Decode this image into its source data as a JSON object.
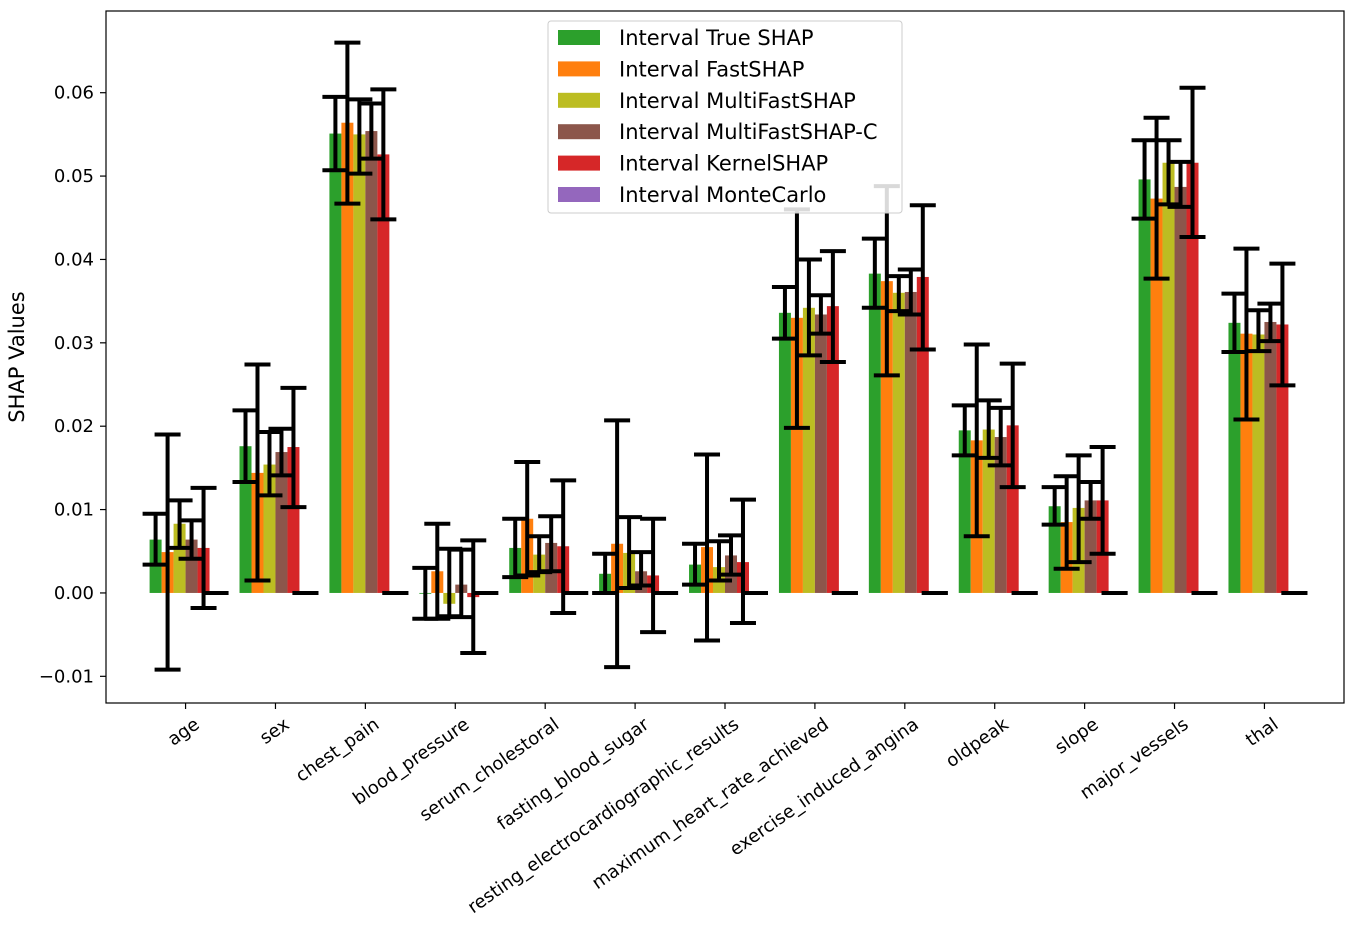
{
  "chart_data": {
    "type": "bar",
    "title": "",
    "xlabel": "",
    "ylabel": "SHAP Values",
    "ylim": [
      -0.0132,
      0.0698
    ],
    "yticks": [
      -0.01,
      0.0,
      0.01,
      0.02,
      0.03,
      0.04,
      0.05,
      0.06
    ],
    "ytick_labels": [
      "−0.01",
      "0.00",
      "0.01",
      "0.02",
      "0.03",
      "0.04",
      "0.05",
      "0.06"
    ],
    "grid": false,
    "legend_position": "upper-center",
    "categories": [
      "age",
      "sex",
      "chest_pain",
      "blood_pressure",
      "serum_cholestoral",
      "fasting_blood_sugar",
      "resting_electrocardiographic_results",
      "maximum_heart_rate_achieved",
      "exercise_induced_angina",
      "oldpeak",
      "slope",
      "major_vessels",
      "thal"
    ],
    "series": [
      {
        "name": "Interval True SHAP",
        "color": "#2ca02c",
        "values": [
          0.0064,
          0.0176,
          0.0551,
          -0.0001,
          0.0054,
          0.0023,
          0.0034,
          0.0336,
          0.0383,
          0.0195,
          0.0104,
          0.0496,
          0.0324
        ],
        "err_low": [
          0.0034,
          0.0133,
          0.0507,
          -0.0031,
          0.0019,
          0.0,
          0.001,
          0.0305,
          0.0342,
          0.0165,
          0.0082,
          0.0449,
          0.0289
        ],
        "err_high": [
          0.0095,
          0.0219,
          0.0595,
          0.003,
          0.0089,
          0.0047,
          0.0059,
          0.0367,
          0.0425,
          0.0225,
          0.0127,
          0.0543,
          0.0359
        ]
      },
      {
        "name": "Interval FastSHAP",
        "color": "#ff7f0e",
        "values": [
          0.0049,
          0.0144,
          0.0564,
          0.0026,
          0.0089,
          0.0059,
          0.0055,
          0.033,
          0.0374,
          0.0183,
          0.0085,
          0.0473,
          0.0311
        ],
        "err_low": [
          -0.0092,
          0.0015,
          0.0467,
          -0.0031,
          0.0021,
          -0.0089,
          -0.0057,
          0.0198,
          0.0261,
          0.0068,
          0.0029,
          0.0377,
          0.0208
        ],
        "err_high": [
          0.019,
          0.0274,
          0.066,
          0.0083,
          0.0157,
          0.0207,
          0.0166,
          0.046,
          0.0488,
          0.0298,
          0.014,
          0.057,
          0.0413
        ]
      },
      {
        "name": "Interval MultiFastSHAP",
        "color": "#bcbd22",
        "values": [
          0.0083,
          0.0154,
          0.055,
          -0.0013,
          0.0046,
          0.0048,
          0.0031,
          0.0342,
          0.036,
          0.0196,
          0.0102,
          0.0516,
          0.031
        ],
        "err_low": [
          0.0054,
          0.0117,
          0.0503,
          -0.0028,
          0.0025,
          0.0006,
          0.0015,
          0.0285,
          0.0338,
          0.0162,
          0.0037,
          0.0466,
          0.029
        ],
        "err_high": [
          0.0111,
          0.0193,
          0.0592,
          0.0053,
          0.0068,
          0.0091,
          0.0062,
          0.04,
          0.038,
          0.0231,
          0.0165,
          0.0543,
          0.0339
        ]
      },
      {
        "name": "Interval MultiFastSHAP-C",
        "color": "#8c564b",
        "values": [
          0.0064,
          0.0169,
          0.0554,
          0.001,
          0.006,
          0.0026,
          0.0045,
          0.0334,
          0.0361,
          0.0187,
          0.0111,
          0.0487,
          0.0325
        ],
        "err_low": [
          0.0041,
          0.0141,
          0.0521,
          -0.0029,
          0.0026,
          0.0009,
          0.0022,
          0.0311,
          0.0334,
          0.0153,
          0.0089,
          0.0463,
          0.0302
        ],
        "err_high": [
          0.0087,
          0.0197,
          0.0587,
          0.0052,
          0.0092,
          0.0049,
          0.0069,
          0.0357,
          0.0388,
          0.0222,
          0.0133,
          0.0517,
          0.0347
        ]
      },
      {
        "name": "Interval KernelSHAP",
        "color": "#d62728",
        "values": [
          0.0054,
          0.0175,
          0.0526,
          -0.0005,
          0.0056,
          0.0021,
          0.0037,
          0.0344,
          0.0379,
          0.0201,
          0.0111,
          0.0516,
          0.0322
        ],
        "err_low": [
          -0.0018,
          0.0103,
          0.0448,
          -0.0072,
          -0.0024,
          -0.0047,
          -0.0036,
          0.0277,
          0.0292,
          0.0127,
          0.0047,
          0.0427,
          0.0249
        ],
        "err_high": [
          0.0126,
          0.0246,
          0.0604,
          0.0063,
          0.0135,
          0.0089,
          0.0112,
          0.041,
          0.0465,
          0.0275,
          0.0175,
          0.0606,
          0.0395
        ]
      },
      {
        "name": "Interval MonteCarlo",
        "color": "#9467bd",
        "values": [
          0,
          0,
          0,
          0,
          0,
          0,
          0,
          0,
          0,
          0,
          0,
          0,
          0
        ],
        "err_low": [
          0,
          0,
          0,
          0,
          0,
          0,
          0,
          0,
          0,
          0,
          0,
          0,
          0
        ],
        "err_high": [
          0,
          0,
          0,
          0,
          0,
          0,
          0,
          0,
          0,
          0,
          0,
          0,
          0
        ]
      }
    ]
  }
}
